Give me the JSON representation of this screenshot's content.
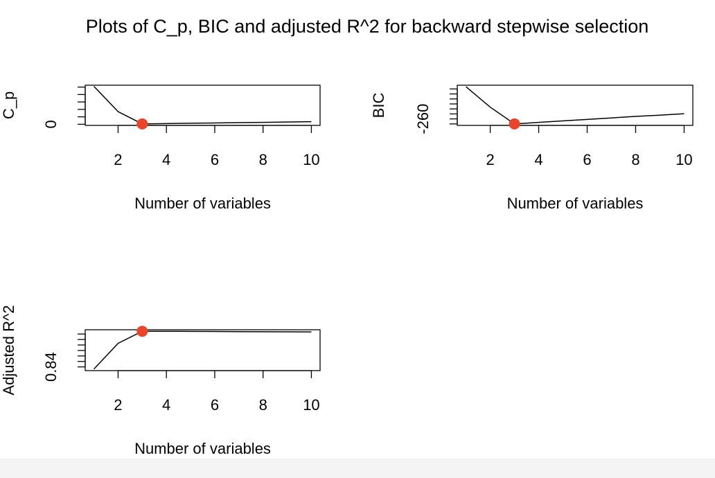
{
  "title": "Plots of C_p, BIC and adjusted R^2 for backward stepwise selection",
  "chart_data": [
    {
      "type": "line",
      "xlabel": "Number of variables",
      "ylabel": "C_p",
      "x": [
        1,
        2,
        3,
        4,
        5,
        6,
        7,
        8,
        9,
        10
      ],
      "values": [
        51,
        17,
        0.5,
        1.0,
        1.4,
        1.8,
        2.2,
        2.6,
        3.0,
        3.5
      ],
      "color": "#000000",
      "highlight_index": 2,
      "highlight_color": "#e8452c",
      "xlim": [
        0.64,
        10.36
      ],
      "xticks": [
        2,
        4,
        6,
        8,
        10
      ],
      "ylim": [
        -1.5,
        52.5
      ],
      "yticks": [
        0,
        {
          "value": 10,
          "label": null
        },
        {
          "value": 20,
          "label": null
        },
        {
          "value": 30,
          "label": null
        },
        {
          "value": 40,
          "label": null
        },
        {
          "value": 50,
          "label": null
        }
      ]
    },
    {
      "type": "line",
      "xlabel": "Number of variables",
      "ylabel": "BIC",
      "x": [
        1,
        2,
        3,
        4,
        5,
        6,
        7,
        8,
        9,
        10
      ],
      "values": [
        -131,
        -213,
        -280,
        -274,
        -268,
        -262,
        -256,
        -250,
        -245,
        -239
      ],
      "color": "#000000",
      "highlight_index": 2,
      "highlight_color": "#e8452c",
      "xlim": [
        0.64,
        10.36
      ],
      "xticks": [
        2,
        4,
        6,
        8,
        10
      ],
      "ylim": [
        -286,
        -125
      ],
      "yticks": [
        {
          "value": -280,
          "label": null
        },
        -260,
        {
          "value": -240,
          "label": null
        },
        {
          "value": -220,
          "label": null
        },
        {
          "value": -200,
          "label": null
        },
        {
          "value": -180,
          "label": null
        },
        {
          "value": -160,
          "label": null
        },
        {
          "value": -140,
          "label": null
        }
      ]
    },
    {
      "type": "line",
      "xlabel": "Number of variables",
      "ylabel": "Adjusted R^2",
      "x": [
        1,
        2,
        3,
        4,
        5,
        6,
        7,
        8,
        9,
        10
      ],
      "values": [
        0.836,
        0.883,
        0.905,
        0.905,
        0.9048,
        0.9046,
        0.9044,
        0.9042,
        0.904,
        0.9038
      ],
      "color": "#000000",
      "highlight_index": 2,
      "highlight_color": "#e8452c",
      "xlim": [
        0.64,
        10.36
      ],
      "xticks": [
        2,
        4,
        6,
        8,
        10
      ],
      "ylim": [
        0.8332,
        0.9078
      ],
      "yticks": [
        0.84,
        {
          "value": 0.85,
          "label": null
        },
        {
          "value": 0.86,
          "label": null
        },
        {
          "value": 0.87,
          "label": null
        },
        {
          "value": 0.88,
          "label": null
        },
        {
          "value": 0.89,
          "label": null
        },
        {
          "value": 0.9,
          "label": null
        }
      ]
    }
  ]
}
